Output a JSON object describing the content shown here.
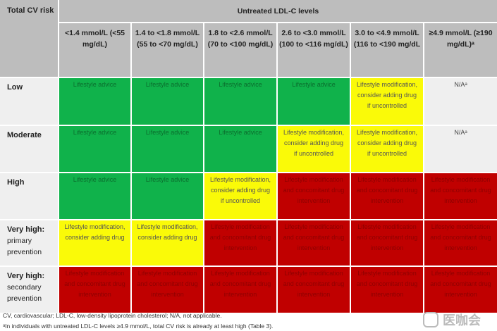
{
  "header": {
    "corner": "Total CV risk",
    "group": "Untreated LDL-C levels",
    "columns": [
      "<1.4 mmol/L (<55 mg/dL)",
      "1.4 to <1.8 mmol/L (55 to <70 mg/dL)",
      "1.8 to <2.6 mmol/L (70 to <100 mg/dL)",
      "2.6 to <3.0 mmol/L (100 to <116 mg/dL)",
      "3.0 to <4.9 mmol/L (116 to <190 mg/dL",
      "≥4.9 mmol/L (≥190 mg/dL)ᵃ"
    ]
  },
  "rows": [
    {
      "label": "Low",
      "sub": "",
      "cells": [
        {
          "t": "Lifestyle advice",
          "c": "green"
        },
        {
          "t": "Lifestyle advice",
          "c": "green"
        },
        {
          "t": "Lifestyle advice",
          "c": "green"
        },
        {
          "t": "Lifestyle advice",
          "c": "green"
        },
        {
          "t": "Lifestyle modification, consider adding drug if uncontrolled",
          "c": "yellow"
        },
        {
          "t": "N/Aᵃ",
          "c": "na"
        }
      ]
    },
    {
      "label": "Moderate",
      "sub": "",
      "cells": [
        {
          "t": "Lifestyle advice",
          "c": "green"
        },
        {
          "t": "Lifestyle advice",
          "c": "green"
        },
        {
          "t": "Lifestyle advice",
          "c": "green"
        },
        {
          "t": "Lifestyle modification, consider adding drug if uncontrolled",
          "c": "yellow"
        },
        {
          "t": "Lifestyle modification, consider adding drug if uncontrolled",
          "c": "yellow"
        },
        {
          "t": "N/Aᵃ",
          "c": "na"
        }
      ]
    },
    {
      "label": "High",
      "sub": "",
      "cells": [
        {
          "t": "Lifestyle advice",
          "c": "green"
        },
        {
          "t": "Lifestyle advice",
          "c": "green"
        },
        {
          "t": "Lifestyle modification, consider adding drug if uncontrolled",
          "c": "yellow"
        },
        {
          "t": "Lifestyle modification and concomitant drug intervention",
          "c": "red"
        },
        {
          "t": "Lifestyle modification and concomitant drug intervention",
          "c": "red"
        },
        {
          "t": "Lifestyle modification and concomitant drug intervention",
          "c": "red"
        }
      ]
    },
    {
      "label": "Very high:",
      "sub": "primary prevention",
      "cells": [
        {
          "t": "Lifestyle modification, consider adding drug",
          "c": "yellow"
        },
        {
          "t": "Lifestyle modification, consider adding drug",
          "c": "yellow"
        },
        {
          "t": "Lifestyle modification and concomitant drug intervention",
          "c": "red"
        },
        {
          "t": "Lifestyle modification and concomitant drug intervention",
          "c": "red"
        },
        {
          "t": "Lifestyle modification and concomitant drug intervention",
          "c": "red"
        },
        {
          "t": "Lifestyle modification and concomitant drug intervention",
          "c": "red"
        }
      ]
    },
    {
      "label": "Very high:",
      "sub": "secondary prevention",
      "cells": [
        {
          "t": "Lifestyle modification and concomitant drug intervention",
          "c": "red"
        },
        {
          "t": "Lifestyle modification and concomitant drug intervention",
          "c": "red"
        },
        {
          "t": "Lifestyle modification and concomitant drug intervention",
          "c": "red"
        },
        {
          "t": "Lifestyle modification and concomitant drug intervention",
          "c": "red"
        },
        {
          "t": "Lifestyle modification and concomitant drug intervention",
          "c": "red"
        },
        {
          "t": "Lifestyle modification and concomitant drug intervention",
          "c": "red"
        }
      ]
    }
  ],
  "footnotes": [
    "CV, cardiovascular; LDL-C, low-density lipoprotein cholesterol; N/A, not applicable.",
    "ᵃIn individuals with untreated LDL-C levels ≥4.9 mmol/L, total CV risk is already at least high (Table 3)."
  ],
  "watermark": "医咖会"
}
